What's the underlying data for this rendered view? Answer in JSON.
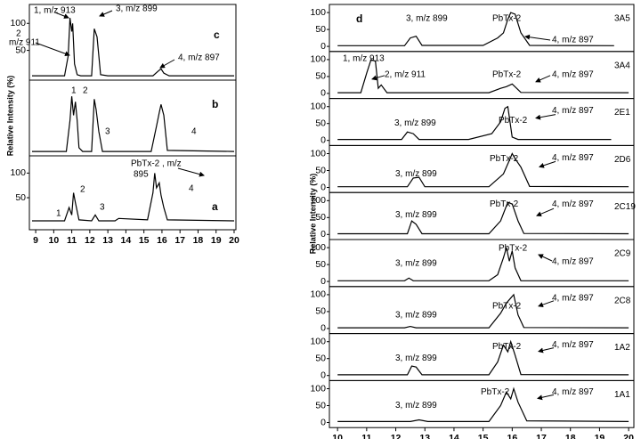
{
  "chart_data": [
    {
      "type": "line",
      "label": "c",
      "color": "#000",
      "y_label": "Relative Intensity (%)",
      "annotations": [
        "1, m/z 913",
        "2",
        "m/z 911",
        "3, m/z 899",
        "4, m/z 897"
      ],
      "x": [
        8.8,
        10.6,
        10.8,
        10.9,
        11.0,
        11.05,
        11.15,
        11.3,
        11.5,
        12.1,
        12.25,
        12.4,
        12.6,
        13,
        15.5,
        15.8,
        15.95,
        16.1,
        16.4,
        20
      ],
      "values": [
        3,
        3,
        40,
        110,
        85,
        100,
        25,
        5,
        3,
        3,
        90,
        75,
        5,
        3,
        3,
        12,
        16,
        8,
        3,
        3
      ],
      "xlim": [
        8.65,
        20.1
      ],
      "ylim": [
        -5,
        135
      ],
      "yticks": [
        50,
        100
      ]
    },
    {
      "type": "line",
      "label": "b",
      "color": "#000",
      "annotations": [
        "1",
        "2",
        "3",
        "4"
      ],
      "x": [
        8.8,
        10.7,
        10.9,
        11.0,
        11.1,
        11.2,
        11.3,
        11.4,
        11.6,
        12.1,
        12.25,
        12.35,
        12.5,
        12.7,
        15.4,
        15.7,
        15.85,
        15.95,
        16.1,
        16.3,
        20
      ],
      "values": [
        3,
        3,
        60,
        105,
        70,
        95,
        60,
        10,
        3,
        3,
        100,
        80,
        40,
        3,
        3,
        50,
        75,
        90,
        70,
        5,
        3
      ],
      "xlim": [
        8.65,
        20.1
      ],
      "ylim": [
        -5,
        135
      ],
      "yticks": []
    },
    {
      "type": "line",
      "label": "a",
      "color": "#000",
      "annotations": [
        "1",
        "2",
        "3",
        "PbTx-2 , m/z",
        "895",
        "4"
      ],
      "x": [
        8.8,
        10.6,
        10.85,
        11.0,
        11.1,
        11.2,
        11.4,
        12.1,
        12.3,
        12.5,
        13.4,
        13.6,
        15.2,
        15.5,
        15.6,
        15.7,
        15.85,
        15.95,
        16.1,
        16.3,
        20
      ],
      "values": [
        3,
        3,
        30,
        15,
        60,
        40,
        5,
        3,
        15,
        3,
        3,
        8,
        5,
        60,
        100,
        70,
        80,
        55,
        30,
        5,
        3
      ],
      "xlim": [
        8.65,
        20.1
      ],
      "ylim": [
        -15,
        135
      ],
      "yticks": [
        50,
        100
      ],
      "xticks": [
        9,
        10,
        11,
        12,
        13,
        14,
        15,
        16,
        17,
        18,
        19,
        20
      ]
    },
    {
      "type": "line",
      "label": "3A5",
      "letter": "d",
      "color": "#000",
      "y_label": "Relative Intensity (%)",
      "annotations": [
        "3, m/z 899",
        "PbTx-2",
        "4, m/z 897"
      ],
      "x": [
        10,
        12.3,
        12.5,
        12.7,
        12.9,
        15,
        15.5,
        15.7,
        15.85,
        15.95,
        16.1,
        16.3,
        16.6,
        19.5
      ],
      "values": [
        2,
        2,
        25,
        30,
        3,
        3,
        25,
        40,
        80,
        100,
        95,
        40,
        3,
        2
      ],
      "xlim": [
        9.72,
        20.18
      ],
      "ylim": [
        -15,
        124
      ],
      "yticks": [
        0,
        50,
        100
      ]
    },
    {
      "type": "line",
      "label": "3A4",
      "color": "#000",
      "annotations": [
        "1, m/z 913",
        "2, m/z 911",
        "PbTx-2",
        "4, m/z 897"
      ],
      "x": [
        10,
        10.8,
        11.0,
        11.15,
        11.3,
        11.4,
        11.5,
        11.7,
        15.2,
        15.6,
        15.8,
        16.0,
        16.3,
        20
      ],
      "values": [
        2,
        2,
        60,
        100,
        95,
        15,
        25,
        2,
        2,
        15,
        20,
        28,
        3,
        2
      ],
      "xlim": [
        9.72,
        20.18
      ],
      "ylim": [
        -15,
        124
      ],
      "yticks": [
        0,
        50,
        100
      ]
    },
    {
      "type": "line",
      "label": "2E1",
      "color": "#000",
      "annotations": [
        "3, m/z 899",
        "PbTx-2",
        "4, m/z  897"
      ],
      "x": [
        10,
        12.2,
        12.4,
        12.6,
        12.8,
        14.5,
        15.3,
        15.6,
        15.75,
        15.85,
        16.0,
        16.2,
        19.4
      ],
      "values": [
        3,
        3,
        25,
        20,
        3,
        3,
        20,
        55,
        95,
        100,
        10,
        3,
        3
      ],
      "xlim": [
        9.72,
        20.18
      ],
      "ylim": [
        -15,
        124
      ],
      "yticks": [
        0,
        50,
        100
      ]
    },
    {
      "type": "line",
      "label": "2D6",
      "color": "#000",
      "annotations": [
        "3, m/z 899",
        "PbTx-2",
        "4, m/z  897"
      ],
      "x": [
        10,
        12.4,
        12.6,
        12.8,
        13.0,
        15.2,
        15.7,
        15.9,
        16.0,
        16.1,
        16.3,
        16.6,
        20
      ],
      "values": [
        2,
        2,
        28,
        30,
        2,
        2,
        40,
        80,
        100,
        85,
        60,
        3,
        2
      ],
      "xlim": [
        9.72,
        20.18
      ],
      "ylim": [
        -15,
        124
      ],
      "yticks": [
        0,
        50,
        100
      ]
    },
    {
      "type": "line",
      "label": "2C19",
      "color": "#000",
      "annotations": [
        "3, m/z 899",
        "PbTx-2",
        "4, m/z  897"
      ],
      "x": [
        10,
        12.4,
        12.55,
        12.7,
        12.9,
        15.2,
        15.6,
        15.85,
        16.0,
        16.2,
        16.4,
        20
      ],
      "values": [
        2,
        2,
        40,
        30,
        2,
        2,
        40,
        95,
        90,
        40,
        3,
        2
      ],
      "xlim": [
        9.72,
        20.18
      ],
      "ylim": [
        -15,
        124
      ],
      "yticks": [
        0,
        50,
        100
      ]
    },
    {
      "type": "line",
      "label": "2C9",
      "color": "#000",
      "annotations": [
        "3, m/z 899",
        "PbTx-2",
        "4, m/z  897"
      ],
      "x": [
        10,
        12.3,
        12.45,
        12.6,
        15.2,
        15.5,
        15.7,
        15.8,
        15.9,
        16.0,
        16.1,
        16.3,
        20
      ],
      "values": [
        2,
        2,
        10,
        2,
        2,
        20,
        70,
        100,
        60,
        90,
        40,
        2,
        2
      ],
      "xlim": [
        9.72,
        20.18
      ],
      "ylim": [
        -15,
        124
      ],
      "yticks": [
        0,
        50,
        100
      ]
    },
    {
      "type": "line",
      "label": "2C8",
      "color": "#000",
      "annotations": [
        "3, m/z 899",
        "PbTx-2",
        "4, m/z  897"
      ],
      "x": [
        10,
        12.3,
        12.5,
        12.7,
        15.2,
        15.6,
        15.8,
        15.95,
        16.05,
        16.2,
        16.4,
        20
      ],
      "values": [
        2,
        2,
        6,
        2,
        2,
        45,
        75,
        90,
        100,
        40,
        3,
        2
      ],
      "xlim": [
        9.72,
        20.18
      ],
      "ylim": [
        -15,
        124
      ],
      "yticks": [
        0,
        50,
        100
      ]
    },
    {
      "type": "line",
      "label": "1A2",
      "color": "#000",
      "annotations": [
        "3, m/z 899",
        "PbTx-2",
        "4, m/z  897"
      ],
      "x": [
        10,
        12.4,
        12.55,
        12.7,
        12.9,
        15.2,
        15.5,
        15.7,
        15.85,
        15.95,
        16.1,
        16.3,
        20
      ],
      "values": [
        2,
        2,
        28,
        25,
        2,
        2,
        40,
        90,
        70,
        100,
        60,
        3,
        2
      ],
      "xlim": [
        9.72,
        20.18
      ],
      "ylim": [
        -15,
        124
      ],
      "yticks": [
        0,
        50,
        100
      ]
    },
    {
      "type": "line",
      "label": "1A1",
      "color": "#000",
      "annotations": [
        "3, m/z 899",
        "PbTx-2",
        "4, m/z  897"
      ],
      "x": [
        10,
        12.5,
        12.8,
        13.1,
        15.2,
        15.6,
        15.8,
        15.95,
        16.05,
        16.2,
        16.5,
        20
      ],
      "values": [
        3,
        3,
        8,
        3,
        3,
        50,
        90,
        70,
        100,
        60,
        5,
        3
      ],
      "xlim": [
        9.72,
        20.18
      ],
      "ylim": [
        -15,
        124
      ],
      "yticks": [
        0,
        50,
        100
      ],
      "xticks": [
        10,
        11,
        12,
        13,
        14,
        15,
        16,
        17,
        18,
        19,
        20
      ]
    }
  ]
}
